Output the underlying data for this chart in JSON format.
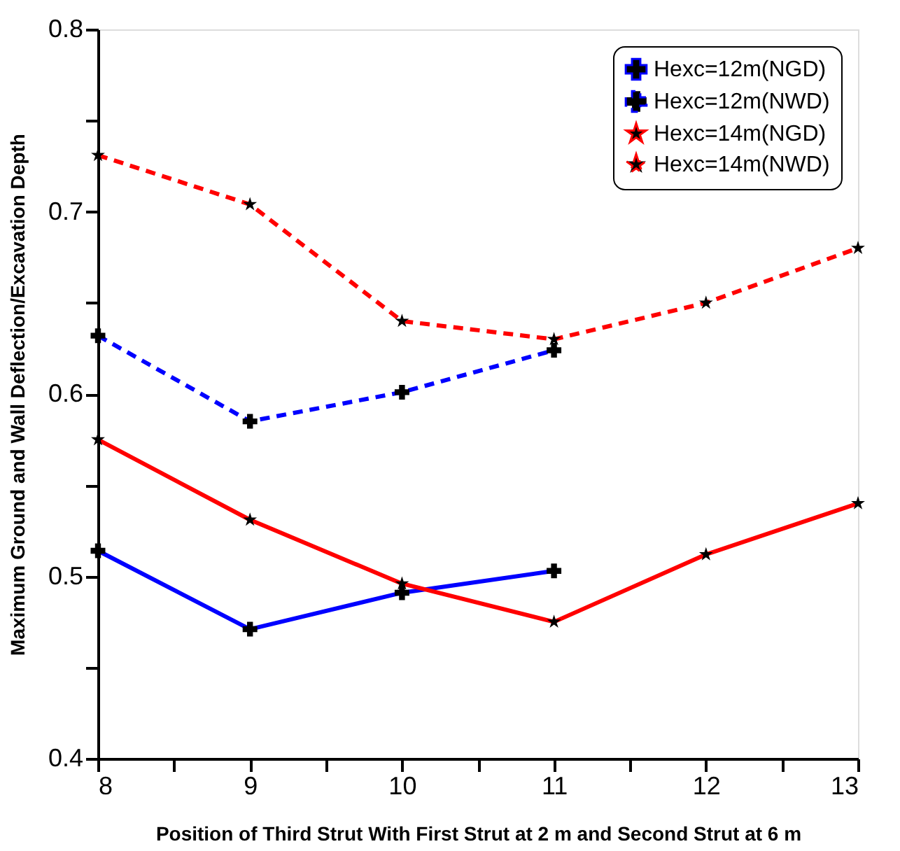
{
  "chart_data": {
    "type": "line",
    "xlabel": "Position of Third Strut With First Strut at 2 m and Second Strut at 6 m",
    "ylabel": "Maximum Ground and Wall Deflection/Excavation Depth",
    "x": [
      8,
      9,
      10,
      11,
      12,
      13
    ],
    "xlim": [
      8,
      13
    ],
    "xticks": [
      8,
      {
        "value": 8.5,
        "label": null
      },
      9,
      {
        "value": 9.5,
        "label": null
      },
      10,
      {
        "value": 10.5,
        "label": null
      },
      11,
      {
        "value": 11.5,
        "label": null
      },
      12,
      {
        "value": 12.5,
        "label": null
      },
      13
    ],
    "ylim": [
      0.4,
      0.8
    ],
    "yticks": [
      0.4,
      {
        "value": 0.45,
        "label": null
      },
      0.5,
      {
        "value": 0.55,
        "label": null
      },
      0.6,
      {
        "value": 0.65,
        "label": null
      },
      0.7,
      {
        "value": 0.75,
        "label": null
      },
      0.8
    ],
    "grid": false,
    "legend": "top right",
    "series": [
      {
        "name": "Hexc=12m(NGD)",
        "color": "#0000ff",
        "line_style": "solid",
        "marker": "cross",
        "values": [
          0.514,
          0.471,
          0.491,
          0.503,
          null,
          null
        ]
      },
      {
        "name": "Hexc=12m(NWD)",
        "color": "#0000ff",
        "line_style": "dashed",
        "marker": "cross",
        "values": [
          0.632,
          0.585,
          0.601,
          0.624,
          null,
          null
        ]
      },
      {
        "name": "Hexc=14m(NGD)",
        "color": "#ff0000",
        "line_style": "solid",
        "marker": "star",
        "values": [
          0.575,
          0.531,
          0.496,
          0.475,
          0.512,
          0.54
        ]
      },
      {
        "name": "Hexc=14m(NWD)",
        "color": "#ff0000",
        "line_style": "dashed",
        "marker": "star",
        "values": [
          0.731,
          0.704,
          0.64,
          0.63,
          0.65,
          0.68
        ]
      }
    ]
  }
}
